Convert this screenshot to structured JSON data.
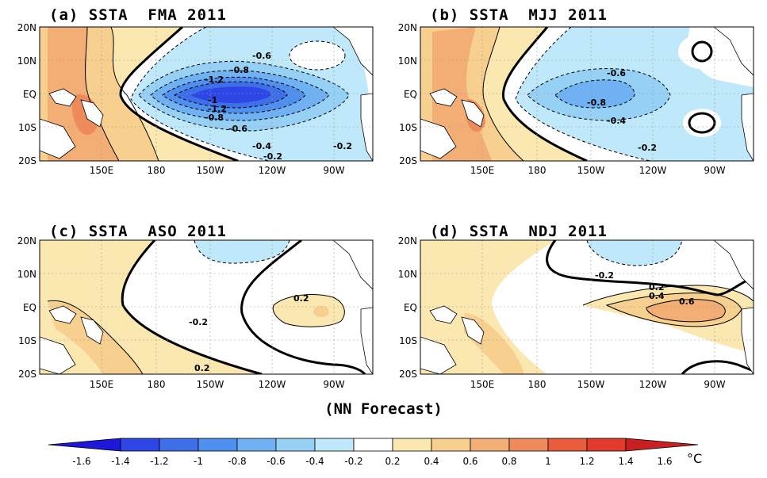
{
  "panels": [
    {
      "title": "(a) SSTA  FMA 2011",
      "contour_labels": [
        "-0.6",
        "-0.8",
        "-1.2",
        "-1",
        "-1.2",
        "-0.8",
        "-0.6",
        "-0.4",
        "-0.2",
        "-0.2"
      ]
    },
    {
      "title": "(b) SSTA  MJJ 2011",
      "contour_labels": [
        "-0.6",
        "-0.8",
        "-0.4",
        "-0.2"
      ]
    },
    {
      "title": "(c) SSTA  ASO 2011",
      "contour_labels": [
        "-0.2",
        "0.2",
        "0.2"
      ]
    },
    {
      "title": "(d) SSTA  NDJ 2011",
      "contour_labels": [
        "-0.2",
        "0.2",
        "0.4",
        "0.6"
      ]
    }
  ],
  "map_axes": {
    "lat_labels": [
      "20N",
      "10N",
      "EQ",
      "10S",
      "20S"
    ],
    "lon_labels": [
      "150E",
      "180",
      "150W",
      "120W",
      "90W"
    ]
  },
  "footer_label": "(NN Forecast)",
  "colorbar": {
    "labels": [
      "-1.6",
      "-1.4",
      "-1.2",
      "-1",
      "-0.8",
      "-0.6",
      "-0.4",
      "-0.2",
      "0.2",
      "0.4",
      "0.6",
      "0.8",
      "1",
      "1.2",
      "1.4",
      "1.6"
    ],
    "unit": "°C",
    "colors": [
      "#1d18d9",
      "#2f46e6",
      "#3f6fe8",
      "#4f8fed",
      "#6fb1f2",
      "#96d0f5",
      "#bfe8fa",
      "#ffffff",
      "#fbe7b0",
      "#f7cf8f",
      "#f3ae76",
      "#ef8b5b",
      "#ea5d3c",
      "#e23a2c",
      "#c81f22"
    ]
  }
}
